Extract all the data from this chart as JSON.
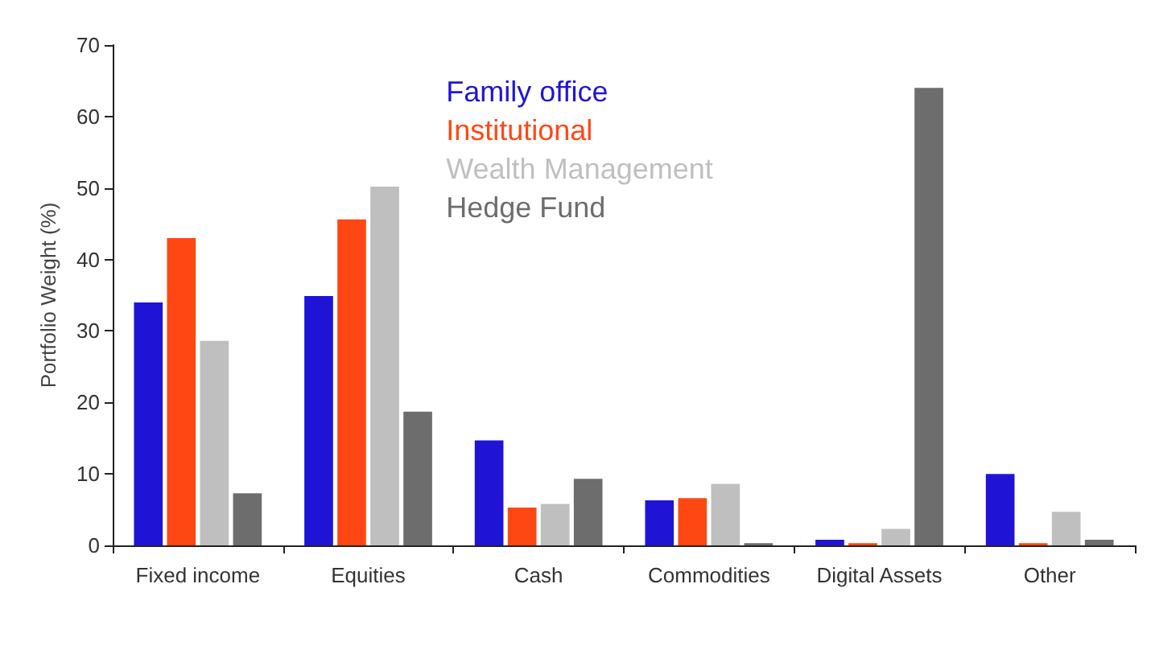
{
  "chart_data": {
    "type": "bar",
    "ylabel": "Portfolio Weight (%)",
    "categories": [
      "Fixed income",
      "Equities",
      "Cash",
      "Commodities",
      "Digital Assets",
      "Other"
    ],
    "series": [
      {
        "name": "Family office",
        "color": "#1f14d6",
        "values": [
          34,
          34.9,
          14.7,
          6.3,
          0.8,
          10
        ]
      },
      {
        "name": "Institutional",
        "color": "#ff4713",
        "values": [
          43,
          45.6,
          5.3,
          6.6,
          0.3,
          0.3
        ]
      },
      {
        "name": "Wealth Management",
        "color": "#bfbfbf",
        "values": [
          28.6,
          50.2,
          5.8,
          8.6,
          2.3,
          4.7
        ]
      },
      {
        "name": "Hedge Fund",
        "color": "#6d6d6d",
        "values": [
          7.3,
          18.7,
          9.3,
          0.3,
          64,
          0.8
        ]
      }
    ],
    "ylim": [
      0,
      70
    ],
    "yticks": [
      0,
      10,
      20,
      30,
      40,
      50,
      60,
      70
    ],
    "grid": false,
    "legend": "top"
  }
}
